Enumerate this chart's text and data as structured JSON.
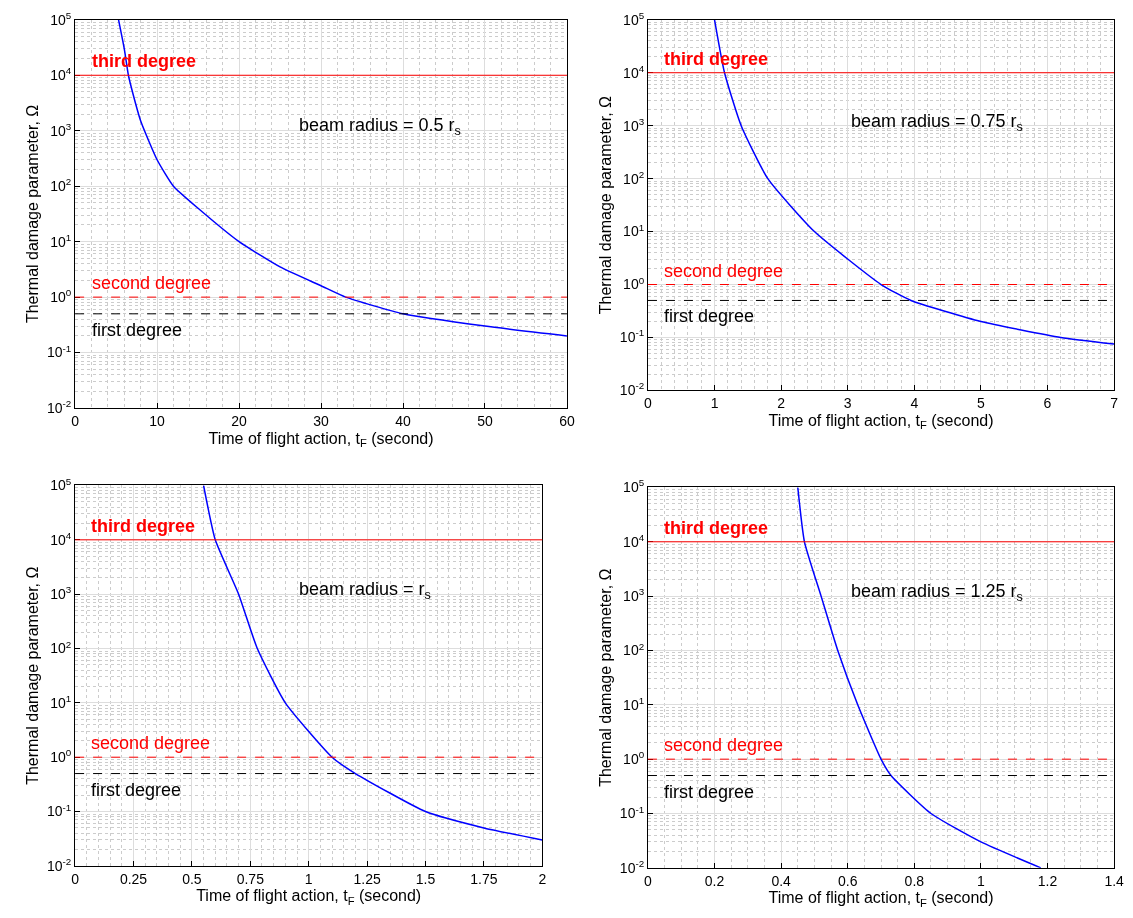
{
  "chart_data": [
    {
      "type": "line",
      "xlabel": "Time of flight action, t$_{F}$ (second)",
      "ylabel": "Thermal damage parameter, Ω",
      "log": "y",
      "grid": true,
      "x": [
        5.3,
        6,
        6.5,
        7,
        8,
        10,
        12,
        15,
        20,
        25,
        30,
        33,
        40,
        50,
        60
      ],
      "series": [
        {
          "color": "#0000ff",
          "values": [
            100000,
            30000,
            10000,
            5000,
            1500,
            300,
            100,
            40,
            10,
            3.5,
            1.6,
            1,
            0.5,
            0.3,
            0.2
          ]
        }
      ],
      "xlim": [
        0,
        60
      ],
      "xticks": [
        0,
        10,
        20,
        30,
        40,
        50,
        60
      ],
      "ylim": [
        0.01,
        100000
      ],
      "yticks": [
        {
          "value": 0.01,
          "label": "10$^{-2}$"
        },
        {
          "value": 0.1,
          "label": "10$^{-1}$"
        },
        {
          "value": 1,
          "label": "10$^{0}$"
        },
        {
          "value": 10,
          "label": "10$^{1}$"
        },
        {
          "value": 100,
          "label": "10$^{2}$"
        },
        {
          "value": 1000,
          "label": "10$^{3}$"
        },
        {
          "value": 10000,
          "label": "10$^{4}$"
        },
        {
          "value": 100000,
          "label": "10$^{5}$"
        }
      ],
      "ref_lines": [
        {
          "axis": "y",
          "value": 10000,
          "label": "third degree",
          "color": "#ff0000",
          "line_style": "solid"
        },
        {
          "axis": "y",
          "value": 1,
          "label": "second degree",
          "color": "#ff0000",
          "line_style": "dashed"
        },
        {
          "axis": "y",
          "value": 0.5,
          "label": "first degree",
          "color": "#000000",
          "line_style": "dashed"
        }
      ],
      "annotations": [
        "beam radius = 0.5 r$_{s}$"
      ]
    },
    {
      "type": "line",
      "xlabel": "Time of flight action, t$_{F}$ (second)",
      "ylabel": "Thermal damage parameter, Ω",
      "log": "y",
      "grid": true,
      "x": [
        1.0,
        1.15,
        1.4,
        1.8,
        2.5,
        3.5,
        3.95,
        5,
        6.2,
        7
      ],
      "series": [
        {
          "color": "#0000ff",
          "values": [
            100000,
            10000,
            1000,
            100,
            10,
            1,
            0.5,
            0.2,
            0.1,
            0.075
          ]
        }
      ],
      "xlim": [
        0,
        7
      ],
      "xticks": [
        0,
        1,
        2,
        3,
        4,
        5,
        6,
        7
      ],
      "ylim": [
        0.01,
        100000
      ],
      "yticks": [
        {
          "value": 0.01,
          "label": "10$^{-2}$"
        },
        {
          "value": 0.1,
          "label": "10$^{-1}$"
        },
        {
          "value": 1,
          "label": "10$^{0}$"
        },
        {
          "value": 10,
          "label": "10$^{1}$"
        },
        {
          "value": 100,
          "label": "10$^{2}$"
        },
        {
          "value": 1000,
          "label": "10$^{3}$"
        },
        {
          "value": 10000,
          "label": "10$^{4}$"
        },
        {
          "value": 100000,
          "label": "10$^{5}$"
        }
      ],
      "ref_lines": [
        {
          "axis": "y",
          "value": 10000,
          "label": "third degree",
          "color": "#ff0000",
          "line_style": "solid"
        },
        {
          "axis": "y",
          "value": 1,
          "label": "second degree",
          "color": "#ff0000",
          "line_style": "dashed"
        },
        {
          "axis": "y",
          "value": 0.5,
          "label": "first degree",
          "color": "#000000",
          "line_style": "dashed"
        }
      ],
      "annotations": [
        "beam radius = 0.75 r$_{s}$"
      ]
    },
    {
      "type": "line",
      "xlabel": "Time of flight action, t$_{F}$ (second)",
      "ylabel": "Thermal damage parameter, Ω",
      "log": "y",
      "grid": true,
      "x": [
        0.55,
        0.6,
        0.7,
        0.78,
        0.9,
        1.1,
        1.2,
        1.5,
        1.75,
        2
      ],
      "series": [
        {
          "color": "#0000ff",
          "values": [
            100000,
            10000,
            1000,
            100,
            10,
            1,
            0.5,
            0.1,
            0.05,
            0.03
          ]
        }
      ],
      "xlim": [
        0,
        2
      ],
      "xticks": [
        0,
        0.25,
        0.5,
        0.75,
        1,
        1.25,
        1.5,
        1.75,
        2
      ],
      "ylim": [
        0.01,
        100000
      ],
      "yticks": [
        {
          "value": 0.01,
          "label": "10$^{-2}$"
        },
        {
          "value": 0.1,
          "label": "10$^{-1}$"
        },
        {
          "value": 1,
          "label": "10$^{0}$"
        },
        {
          "value": 10,
          "label": "10$^{1}$"
        },
        {
          "value": 100,
          "label": "10$^{2}$"
        },
        {
          "value": 1000,
          "label": "10$^{3}$"
        },
        {
          "value": 10000,
          "label": "10$^{4}$"
        },
        {
          "value": 100000,
          "label": "10$^{5}$"
        }
      ],
      "ref_lines": [
        {
          "axis": "y",
          "value": 10000,
          "label": "third degree",
          "color": "#ff0000",
          "line_style": "solid"
        },
        {
          "axis": "y",
          "value": 1,
          "label": "second degree",
          "color": "#ff0000",
          "line_style": "dashed"
        },
        {
          "axis": "y",
          "value": 0.5,
          "label": "first degree",
          "color": "#000000",
          "line_style": "dashed"
        }
      ],
      "annotations": [
        "beam radius = r$_{s}$"
      ]
    },
    {
      "type": "line",
      "xlabel": "Time of flight action, t$_{F}$ (second)",
      "ylabel": "Thermal damage parameter, Ω",
      "log": "y",
      "grid": true,
      "x": [
        0.45,
        0.47,
        0.52,
        0.57,
        0.63,
        0.7,
        0.73,
        0.85,
        1.0,
        1.18
      ],
      "series": [
        {
          "color": "#0000ff",
          "values": [
            100000,
            10000,
            1000,
            100,
            10,
            1,
            0.5,
            0.1,
            0.03,
            0.01
          ]
        }
      ],
      "xlim": [
        0,
        1.4
      ],
      "xticks": [
        0,
        0.2,
        0.4,
        0.6,
        0.8,
        1,
        1.2,
        1.4
      ],
      "ylim": [
        0.01,
        100000
      ],
      "yticks": [
        {
          "value": 0.01,
          "label": "10$^{-2}$"
        },
        {
          "value": 0.1,
          "label": "10$^{-1}$"
        },
        {
          "value": 1,
          "label": "10$^{0}$"
        },
        {
          "value": 10,
          "label": "10$^{1}$"
        },
        {
          "value": 100,
          "label": "10$^{2}$"
        },
        {
          "value": 1000,
          "label": "10$^{3}$"
        },
        {
          "value": 10000,
          "label": "10$^{4}$"
        },
        {
          "value": 100000,
          "label": "10$^{5}$"
        }
      ],
      "ref_lines": [
        {
          "axis": "y",
          "value": 10000,
          "label": "third degree",
          "color": "#ff0000",
          "line_style": "solid"
        },
        {
          "axis": "y",
          "value": 1,
          "label": "second degree",
          "color": "#ff0000",
          "line_style": "dashed"
        },
        {
          "axis": "y",
          "value": 0.5,
          "label": "first degree",
          "color": "#000000",
          "line_style": "dashed"
        }
      ],
      "annotations": [
        "beam radius = 1.25 r$_{s}$"
      ]
    }
  ]
}
